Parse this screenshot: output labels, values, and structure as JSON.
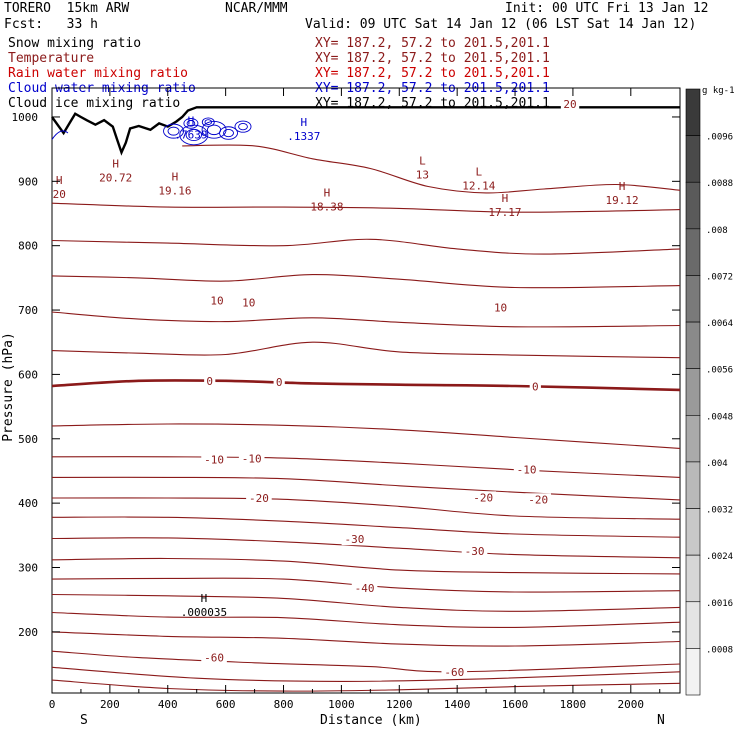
{
  "header": {
    "model": "TORERO  15km ARW",
    "center": "NCAR/MMM",
    "init": "Init: 00 UTC Fri 13 Jan 12",
    "fcst": "Fcst:   33 h",
    "valid": "Valid: 09 UTC Sat 14 Jan 12 (06 LST Sat 14 Jan 12)"
  },
  "legend": [
    {
      "label": "Snow mixing ratio",
      "xy": "XY= 187.2, 57.2 to 201.5,201.1",
      "color": "#000000"
    },
    {
      "label": "Temperature",
      "xy": "XY= 187.2, 57.2 to 201.5,201.1",
      "color": "#8b1a1a"
    },
    {
      "label": "Rain water mixing ratio",
      "xy": "XY= 187.2, 57.2 to 201.5,201.1",
      "color": "#cc0000"
    },
    {
      "label": "Cloud water mixing ratio",
      "xy": "XY= 187.2, 57.2 to 201.5,201.1",
      "color": "#0000cc"
    },
    {
      "label": "Cloud ice mixing ratio",
      "xy": "XY= 187.2, 57.2 to 201.5,201.1",
      "color": "#000000"
    }
  ],
  "chart_data": {
    "type": "cross-section contour",
    "xlabel": "Distance (km)",
    "ylabel": "Pressure (hPa)",
    "xlim": [
      0,
      2170
    ],
    "ylim": [
      1045,
      105
    ],
    "x_ticks": [
      0,
      200,
      400,
      600,
      800,
      1000,
      1200,
      1400,
      1600,
      1800,
      2000
    ],
    "y_ticks": [
      200,
      300,
      400,
      500,
      600,
      700,
      800,
      900,
      1000
    ],
    "direction_left": "S",
    "direction_right": "N",
    "temperature_contours": [
      {
        "t": -70,
        "pts": [
          [
            0,
            125
          ],
          [
            400,
            112
          ],
          [
            800,
            108
          ],
          [
            1200,
            110
          ],
          [
            1600,
            115
          ],
          [
            2170,
            120
          ]
        ]
      },
      {
        "t": -65,
        "pts": [
          [
            0,
            145
          ],
          [
            500,
            128
          ],
          [
            1000,
            123
          ],
          [
            1500,
            127
          ],
          [
            2170,
            138
          ]
        ]
      },
      {
        "t": -60,
        "pts": [
          [
            0,
            170
          ],
          [
            300,
            160
          ],
          [
            700,
            152
          ],
          [
            1100,
            146
          ],
          [
            1400,
            138
          ],
          [
            2170,
            150
          ]
        ]
      },
      {
        "t": -55,
        "pts": [
          [
            0,
            200
          ],
          [
            400,
            193
          ],
          [
            800,
            190
          ],
          [
            1200,
            181
          ],
          [
            1600,
            178
          ],
          [
            2170,
            185
          ]
        ]
      },
      {
        "t": -50,
        "pts": [
          [
            0,
            230
          ],
          [
            400,
            223
          ],
          [
            800,
            222
          ],
          [
            1200,
            211
          ],
          [
            1600,
            207
          ],
          [
            2170,
            215
          ]
        ]
      },
      {
        "t": -45,
        "pts": [
          [
            0,
            258
          ],
          [
            400,
            256
          ],
          [
            800,
            252
          ],
          [
            1200,
            238
          ],
          [
            1600,
            232
          ],
          [
            2170,
            238
          ]
        ]
      },
      {
        "t": -40,
        "pts": [
          [
            0,
            282
          ],
          [
            400,
            283
          ],
          [
            800,
            282
          ],
          [
            1200,
            268
          ],
          [
            1600,
            262
          ],
          [
            2170,
            264
          ]
        ]
      },
      {
        "t": -35,
        "pts": [
          [
            0,
            312
          ],
          [
            400,
            314
          ],
          [
            800,
            310
          ],
          [
            1200,
            296
          ],
          [
            1600,
            292
          ],
          [
            2170,
            290
          ]
        ]
      },
      {
        "t": -30,
        "pts": [
          [
            0,
            345
          ],
          [
            400,
            346
          ],
          [
            800,
            340
          ],
          [
            1200,
            330
          ],
          [
            1600,
            320
          ],
          [
            2170,
            315
          ]
        ]
      },
      {
        "t": -25,
        "pts": [
          [
            0,
            378
          ],
          [
            400,
            378
          ],
          [
            800,
            372
          ],
          [
            1200,
            362
          ],
          [
            1600,
            352
          ],
          [
            2170,
            347
          ]
        ]
      },
      {
        "t": -20,
        "pts": [
          [
            0,
            408
          ],
          [
            400,
            408
          ],
          [
            800,
            406
          ],
          [
            1200,
            395
          ],
          [
            1600,
            380
          ],
          [
            2170,
            375
          ]
        ]
      },
      {
        "t": -15,
        "pts": [
          [
            0,
            440
          ],
          [
            400,
            440
          ],
          [
            800,
            438
          ],
          [
            1200,
            427
          ],
          [
            1600,
            417
          ],
          [
            2170,
            405
          ]
        ]
      },
      {
        "t": -10,
        "pts": [
          [
            0,
            472
          ],
          [
            400,
            472
          ],
          [
            800,
            470
          ],
          [
            1200,
            462
          ],
          [
            1600,
            452
          ],
          [
            2170,
            440
          ]
        ]
      },
      {
        "t": -5,
        "pts": [
          [
            0,
            520
          ],
          [
            400,
            523
          ],
          [
            800,
            521
          ],
          [
            1200,
            514
          ],
          [
            1600,
            502
          ],
          [
            2170,
            485
          ]
        ]
      },
      {
        "t": 0,
        "pts": [
          [
            0,
            582
          ],
          [
            300,
            590
          ],
          [
            600,
            590
          ],
          [
            900,
            586
          ],
          [
            1200,
            584
          ],
          [
            1600,
            582
          ],
          [
            2170,
            576
          ]
        ]
      },
      {
        "t": 5,
        "pts": [
          [
            0,
            637
          ],
          [
            300,
            633
          ],
          [
            600,
            631
          ],
          [
            900,
            650
          ],
          [
            1200,
            635
          ],
          [
            1600,
            630
          ],
          [
            2170,
            626
          ]
        ]
      },
      {
        "t": 10,
        "pts": [
          [
            0,
            697
          ],
          [
            300,
            686
          ],
          [
            600,
            682
          ],
          [
            900,
            688
          ],
          [
            1200,
            681
          ],
          [
            1600,
            674
          ],
          [
            2170,
            676
          ]
        ]
      },
      {
        "t": 15,
        "pts": [
          [
            0,
            753
          ],
          [
            300,
            750
          ],
          [
            600,
            745
          ],
          [
            900,
            755
          ],
          [
            1200,
            748
          ],
          [
            1600,
            735
          ],
          [
            2170,
            738
          ]
        ]
      },
      {
        "t": 20,
        "pts": [
          [
            0,
            808
          ],
          [
            400,
            804
          ],
          [
            800,
            800
          ],
          [
            1100,
            810
          ],
          [
            1400,
            795
          ],
          [
            1700,
            787
          ],
          [
            2170,
            795
          ]
        ]
      },
      {
        "t": 25,
        "pts": [
          [
            0,
            866
          ],
          [
            400,
            860
          ],
          [
            800,
            860
          ],
          [
            1200,
            858
          ],
          [
            1600,
            852
          ],
          [
            2170,
            856
          ]
        ]
      },
      {
        "t": 30,
        "pts": [
          [
            450,
            955
          ],
          [
            700,
            955
          ],
          [
            900,
            935
          ],
          [
            1100,
            920
          ],
          [
            1300,
            892
          ],
          [
            1500,
            882
          ],
          [
            1700,
            888
          ],
          [
            1950,
            895
          ],
          [
            2170,
            886
          ]
        ]
      }
    ],
    "contour_labels": [
      {
        "text": "-60",
        "x": 560,
        "p": 160
      },
      {
        "text": "-60",
        "x": 1390,
        "p": 138
      },
      {
        "text": "-40",
        "x": 1080,
        "p": 268
      },
      {
        "text": "-30",
        "x": 1045,
        "p": 344
      },
      {
        "text": "-30",
        "x": 1460,
        "p": 326
      },
      {
        "text": "-20",
        "x": 715,
        "p": 408
      },
      {
        "text": "-20",
        "x": 1490,
        "p": 409
      },
      {
        "text": "-20",
        "x": 1680,
        "p": 406
      },
      {
        "text": "-10",
        "x": 560,
        "p": 468
      },
      {
        "text": "-10",
        "x": 690,
        "p": 469
      },
      {
        "text": "-10",
        "x": 1640,
        "p": 452
      },
      {
        "text": "0",
        "x": 545,
        "p": 590
      },
      {
        "text": "0",
        "x": 785,
        "p": 588
      },
      {
        "text": "0",
        "x": 1670,
        "p": 581
      },
      {
        "text": "10",
        "x": 570,
        "p": 715
      },
      {
        "text": "10",
        "x": 680,
        "p": 712
      },
      {
        "text": "10",
        "x": 1550,
        "p": 704
      },
      {
        "text": "20",
        "x": 1790,
        "p": 1020
      }
    ],
    "extrema": [
      {
        "kind": "H",
        "value": ".000035",
        "x": 525,
        "p": 240,
        "color": "#000000"
      },
      {
        "kind": "H",
        "value": "20",
        "x": 25,
        "p": 890,
        "color": "#8b1a1a"
      },
      {
        "kind": "H",
        "value": "20.72",
        "x": 220,
        "p": 915,
        "color": "#8b1a1a"
      },
      {
        "kind": "H",
        "value": "19.16",
        "x": 425,
        "p": 895,
        "color": "#8b1a1a"
      },
      {
        "kind": "H",
        "value": "18.38",
        "x": 950,
        "p": 870,
        "color": "#8b1a1a"
      },
      {
        "kind": "L",
        "value": "13",
        "x": 1280,
        "p": 920,
        "color": "#8b1a1a"
      },
      {
        "kind": "L",
        "value": "12.14",
        "x": 1475,
        "p": 903,
        "color": "#8b1a1a"
      },
      {
        "kind": "H",
        "value": "17.17",
        "x": 1565,
        "p": 862,
        "color": "#8b1a1a"
      },
      {
        "kind": "H",
        "value": "19.12",
        "x": 1970,
        "p": 880,
        "color": "#8b1a1a"
      },
      {
        "kind": "H",
        "value": ".7639",
        "x": 480,
        "p": 982,
        "color": "#0000cc"
      },
      {
        "kind": "H",
        "value": ".1337",
        "x": 870,
        "p": 980,
        "color": "#0000cc"
      }
    ],
    "terrain": [
      [
        0,
        1000
      ],
      [
        40,
        975
      ],
      [
        60,
        990
      ],
      [
        80,
        1005
      ],
      [
        100,
        1000
      ],
      [
        120,
        995
      ],
      [
        150,
        988
      ],
      [
        180,
        995
      ],
      [
        210,
        985
      ],
      [
        225,
        965
      ],
      [
        240,
        945
      ],
      [
        255,
        960
      ],
      [
        270,
        982
      ],
      [
        300,
        986
      ],
      [
        340,
        980
      ],
      [
        370,
        990
      ],
      [
        400,
        985
      ],
      [
        430,
        993
      ],
      [
        450,
        1000
      ],
      [
        470,
        1010
      ],
      [
        500,
        1015
      ],
      [
        2170,
        1015
      ]
    ],
    "colorbar": {
      "units": "g kg-1",
      "ticks": [
        ".0096",
        ".0088",
        ".008",
        ".0072",
        ".0064",
        ".0056",
        ".0048",
        ".004",
        ".0032",
        ".0024",
        ".0016",
        ".0008"
      ],
      "colors": [
        "#3a3a3a",
        "#4a4a4a",
        "#5a5a5a",
        "#6a6a6a",
        "#7a7a7a",
        "#8a8a8a",
        "#9a9a9a",
        "#aaaaaa",
        "#b9b9b9",
        "#c8c8c8",
        "#d6d6d6",
        "#e4e4e4",
        "#f2f2f2"
      ]
    }
  }
}
